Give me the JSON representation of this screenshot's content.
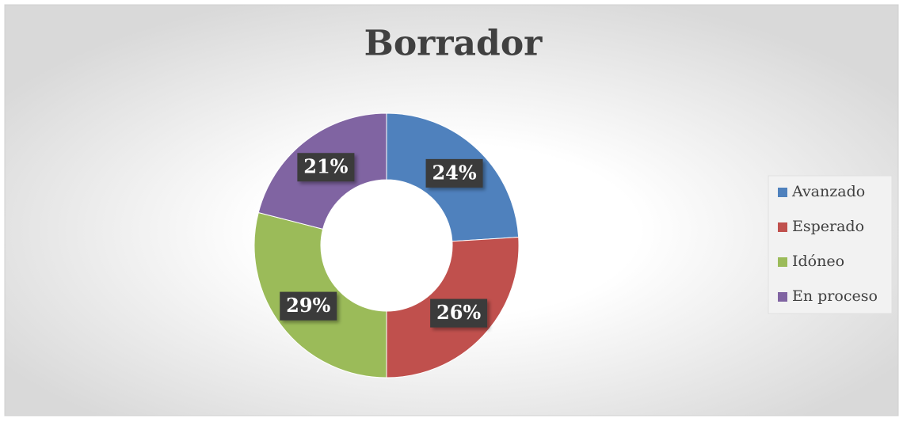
{
  "chart_data": {
    "type": "donut",
    "title": "Borrador",
    "categories": [
      "Avanzado",
      "Esperado",
      "Idóneo",
      "En proceso"
    ],
    "values": [
      24,
      26,
      29,
      21
    ],
    "value_labels": [
      "24%",
      "26%",
      "29%",
      "21%"
    ],
    "colors": [
      "#4f81bd",
      "#c0504d",
      "#9bbb59",
      "#8064a2"
    ],
    "legend": "right"
  }
}
